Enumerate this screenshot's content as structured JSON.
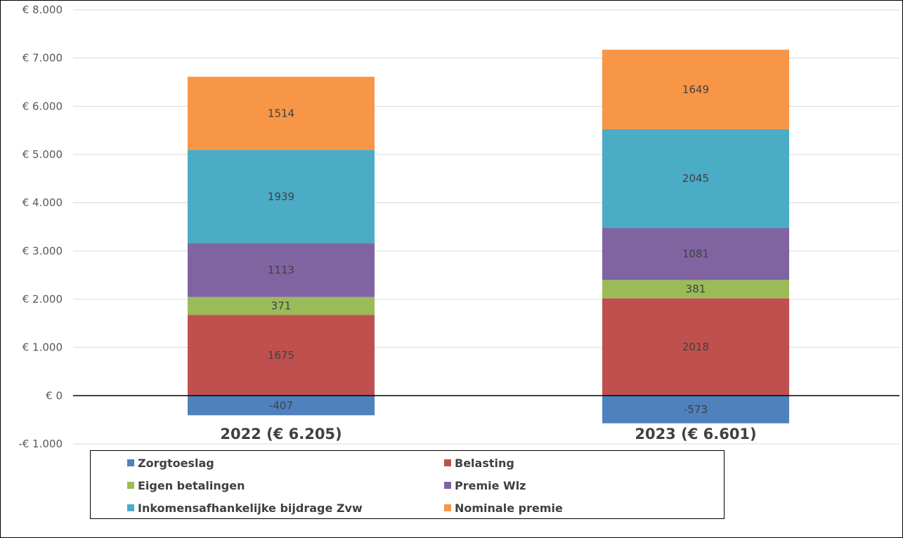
{
  "chart_data": {
    "type": "bar",
    "stacked": true,
    "categories": [
      "2022 (€ 6.205)",
      "2023 (€ 6.601)"
    ],
    "ylim": [
      -1000,
      8000
    ],
    "y_ticks": [
      8000,
      7000,
      6000,
      5000,
      4000,
      3000,
      2000,
      1000,
      0,
      -1000
    ],
    "y_tick_labels": [
      "€ 8.000",
      "€ 7.000",
      "€ 6.000",
      "€ 5.000",
      "€ 4.000",
      "€ 3.000",
      "€ 2.000",
      "€ 1.000",
      "€ 0",
      "-€ 1.000"
    ],
    "grid": true,
    "legend_position": "bottom",
    "series": [
      {
        "name": "Zorgtoeslag",
        "color": "#4F81BD",
        "values": [
          -407,
          -573
        ],
        "labels": [
          "-407",
          "-573"
        ]
      },
      {
        "name": "Belasting",
        "color": "#C0504D",
        "values": [
          1675,
          2018
        ],
        "labels": [
          "1675",
          "2018"
        ]
      },
      {
        "name": "Eigen betalingen",
        "color": "#9BBB59",
        "values": [
          371,
          381
        ],
        "labels": [
          "371",
          "381"
        ]
      },
      {
        "name": "Premie Wlz",
        "color": "#8064A2",
        "values": [
          1113,
          1081
        ],
        "labels": [
          "1113",
          "1081"
        ]
      },
      {
        "name": "Inkomensafhankelijke bijdrage Zvw",
        "color": "#4BACC6",
        "values": [
          1939,
          2045
        ],
        "labels": [
          "1939",
          "2045"
        ]
      },
      {
        "name": "Nominale premie",
        "color": "#F79646",
        "values": [
          1514,
          1649
        ],
        "labels": [
          "1514",
          "1649"
        ]
      }
    ]
  }
}
